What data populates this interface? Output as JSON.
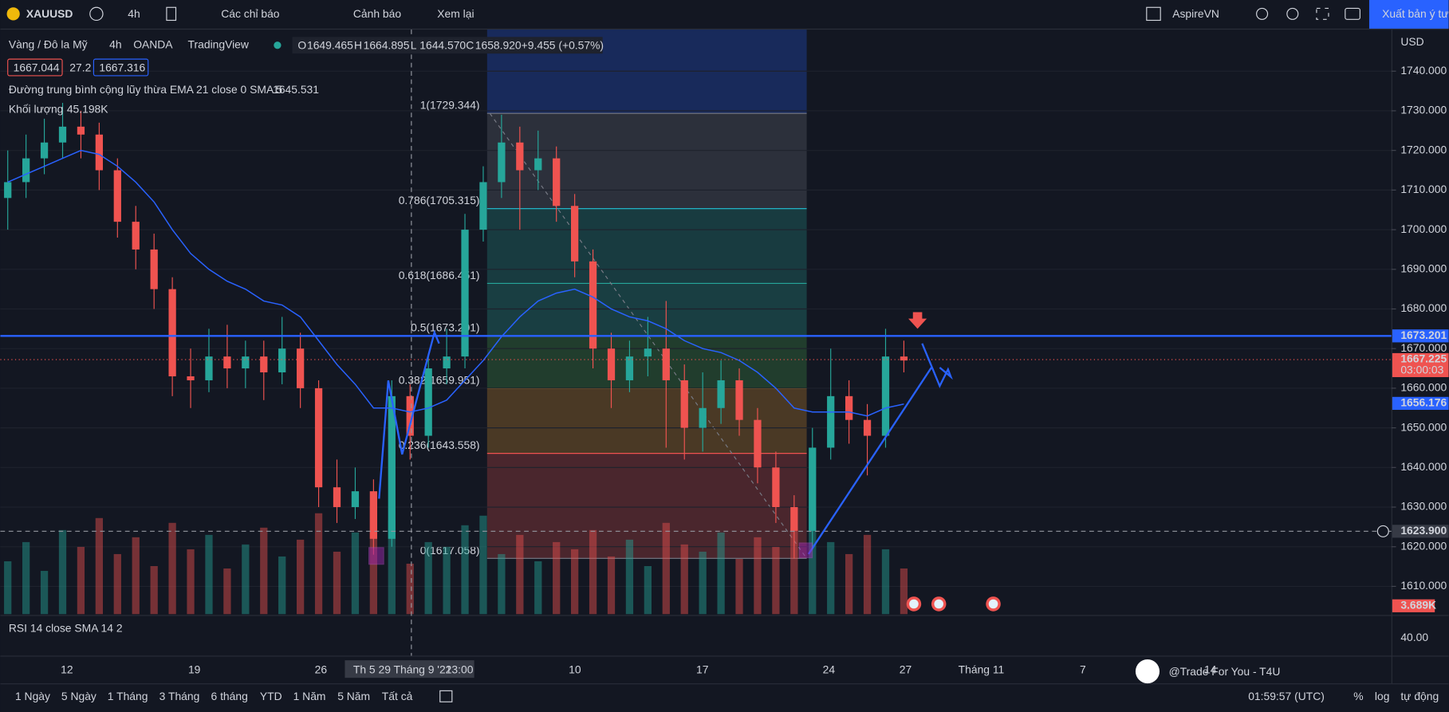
{
  "toolbar": {
    "symbol": "XAUUSD",
    "interval": "4h",
    "indicators": "Các chỉ báo",
    "alerts": "Cảnh báo",
    "replay": "Xem lại",
    "layout": "AspireVN",
    "publish": "Xuất bản ý tư"
  },
  "legend": {
    "name": "Vàng / Đô la Mỹ",
    "interval": "4h",
    "exchange": "OANDA",
    "source": "TradingView",
    "o_label": "O",
    "o": "1649.465",
    "h_label": "H",
    "h": "1664.895",
    "l_label": "L",
    "l": "1644.570",
    "c_label": "C",
    "c": "1658.920",
    "change": "+9.455 (+0.57%)",
    "bid": "1667.044",
    "spread": "27.2",
    "ask": "1667.316"
  },
  "indicators": {
    "ema_title": "Đường trung bình cộng lũy thừa EMA 21 close 0 SMA 5",
    "ema_value": "1645.531",
    "volume_title": "Khối lượng",
    "volume_value": "45.198K",
    "volume_badge": "3.689K",
    "rsi_title": "RSI 14 close SMA 14 2",
    "rsi_tick": "40.00"
  },
  "chart_data": {
    "type": "candlestick",
    "currency": "USD",
    "ylim": [
      1603,
      1750.5
    ],
    "yticks": [
      {
        "value": 1610,
        "label": "1610.000"
      },
      {
        "value": 1620,
        "label": "1620.000"
      },
      {
        "value": 1630,
        "label": "1630.000"
      },
      {
        "value": 1640,
        "label": "1640.000"
      },
      {
        "value": 1650,
        "label": "1650.000"
      },
      {
        "value": 1660,
        "label": "1660.000"
      },
      {
        "value": 1670,
        "label": "1670.000"
      },
      {
        "value": 1680,
        "label": "1680.000"
      },
      {
        "value": 1690,
        "label": "1690.000"
      },
      {
        "value": 1700,
        "label": "1700.000"
      },
      {
        "value": 1710,
        "label": "1710.000"
      },
      {
        "value": 1720,
        "label": "1720.000"
      },
      {
        "value": 1730,
        "label": "1730.000"
      },
      {
        "value": 1740,
        "label": "1740.000"
      }
    ],
    "candles": [
      [
        1708,
        1720,
        1700,
        1712
      ],
      [
        1712,
        1724,
        1708,
        1718
      ],
      [
        1718,
        1728,
        1714,
        1722
      ],
      [
        1722,
        1732,
        1718,
        1726
      ],
      [
        1726,
        1730,
        1718,
        1724
      ],
      [
        1724,
        1727,
        1710,
        1715
      ],
      [
        1715,
        1718,
        1698,
        1702
      ],
      [
        1702,
        1706,
        1690,
        1695
      ],
      [
        1695,
        1699,
        1680,
        1685
      ],
      [
        1685,
        1688,
        1658,
        1663
      ],
      [
        1663,
        1670,
        1655,
        1662
      ],
      [
        1662,
        1675,
        1659,
        1668
      ],
      [
        1668,
        1676,
        1660,
        1665
      ],
      [
        1665,
        1672,
        1660,
        1668
      ],
      [
        1668,
        1672,
        1657,
        1664
      ],
      [
        1664,
        1678,
        1661,
        1670
      ],
      [
        1670,
        1674,
        1655,
        1660
      ],
      [
        1660,
        1662,
        1630,
        1635
      ],
      [
        1635,
        1642,
        1626,
        1630
      ],
      [
        1630,
        1640,
        1627,
        1634
      ],
      [
        1634,
        1637,
        1618,
        1622
      ],
      [
        1622,
        1662,
        1620,
        1658
      ],
      [
        1658,
        1661,
        1642,
        1648
      ],
      [
        1648,
        1668,
        1645,
        1665
      ],
      [
        1665,
        1675,
        1661,
        1668
      ],
      [
        1668,
        1704,
        1665,
        1700
      ],
      [
        1700,
        1716,
        1697,
        1712
      ],
      [
        1712,
        1729,
        1708,
        1722
      ],
      [
        1722,
        1726,
        1700,
        1715
      ],
      [
        1715,
        1725,
        1710,
        1718
      ],
      [
        1718,
        1721,
        1702,
        1706
      ],
      [
        1706,
        1709,
        1688,
        1692
      ],
      [
        1692,
        1695,
        1665,
        1670
      ],
      [
        1670,
        1674,
        1655,
        1662
      ],
      [
        1662,
        1672,
        1659,
        1668
      ],
      [
        1668,
        1678,
        1663,
        1670
      ],
      [
        1670,
        1682,
        1645,
        1662
      ],
      [
        1662,
        1666,
        1642,
        1650
      ],
      [
        1650,
        1664,
        1644,
        1655
      ],
      [
        1655,
        1667,
        1651,
        1662
      ],
      [
        1662,
        1665,
        1648,
        1652
      ],
      [
        1652,
        1655,
        1636,
        1640
      ],
      [
        1640,
        1644,
        1626,
        1630
      ],
      [
        1630,
        1633,
        1617,
        1624
      ],
      [
        1624,
        1650,
        1620,
        1645
      ],
      [
        1645,
        1670,
        1642,
        1658
      ],
      [
        1658,
        1662,
        1646,
        1652
      ],
      [
        1652,
        1656,
        1638,
        1648
      ],
      [
        1648,
        1675,
        1645,
        1668
      ],
      [
        1668,
        1672,
        1664,
        1667
      ]
    ],
    "ema": [
      1712,
      1714,
      1716,
      1718,
      1720,
      1719,
      1716,
      1712,
      1707,
      1700,
      1694,
      1690,
      1687,
      1685,
      1682,
      1681,
      1678,
      1672,
      1666,
      1661,
      1655,
      1655,
      1654,
      1655,
      1657,
      1662,
      1667,
      1673,
      1678,
      1682,
      1684,
      1685,
      1683,
      1680,
      1678,
      1677,
      1675,
      1672,
      1670,
      1669,
      1667,
      1664,
      1660,
      1655,
      1654,
      1654,
      1654,
      1653,
      1655,
      1656
    ],
    "volumes": [
      22,
      30,
      18,
      35,
      28,
      40,
      25,
      32,
      20,
      38,
      27,
      33,
      19,
      29,
      36,
      24,
      31,
      42,
      26,
      34,
      45,
      39,
      21,
      30,
      28,
      37,
      41,
      25,
      33,
      22,
      30,
      27,
      35,
      24,
      31,
      20,
      38,
      29,
      26,
      34,
      23,
      32,
      28,
      36,
      44,
      30,
      25,
      33,
      27,
      19
    ],
    "fib": [
      {
        "label": "1(1729.344)",
        "price": 1729.344
      },
      {
        "label": "0.786(1705.315)",
        "price": 1705.315
      },
      {
        "label": "0.618(1686.451)",
        "price": 1686.451
      },
      {
        "label": "0.5(1673.201)",
        "price": 1673.201
      },
      {
        "label": "0.382(1659.951)",
        "price": 1659.951
      },
      {
        "label": "0.236(1643.558)",
        "price": 1643.558
      },
      {
        "label": "0(1617.058)",
        "price": 1617.058
      }
    ],
    "level_line": {
      "value": 1673.201,
      "label": "1673.201"
    },
    "last_price": {
      "value": 1667.225,
      "label": "1667.225",
      "countdown": "03:00:03"
    },
    "ema_badge": {
      "value": 1656.176,
      "label": "1656.176"
    },
    "crosshair": {
      "value": 1623.9,
      "label": "1623.900"
    }
  },
  "time_axis": [
    "12",
    "19",
    "26",
    "Th 5 29 Tháng 9 '22",
    "13:00",
    "10",
    "17",
    "24",
    "27",
    "Tháng 11",
    "7",
    "14"
  ],
  "ranges": [
    "1 Ngày",
    "5 Ngày",
    "1 Tháng",
    "3 Tháng",
    "6 tháng",
    "YTD",
    "1 Năm",
    "5 Năm",
    "Tất cả"
  ],
  "clock": "01:59:57 (UTC)",
  "scale_options": [
    "%",
    "log",
    "tự động"
  ],
  "watermark": "@Trade For You - T4U"
}
